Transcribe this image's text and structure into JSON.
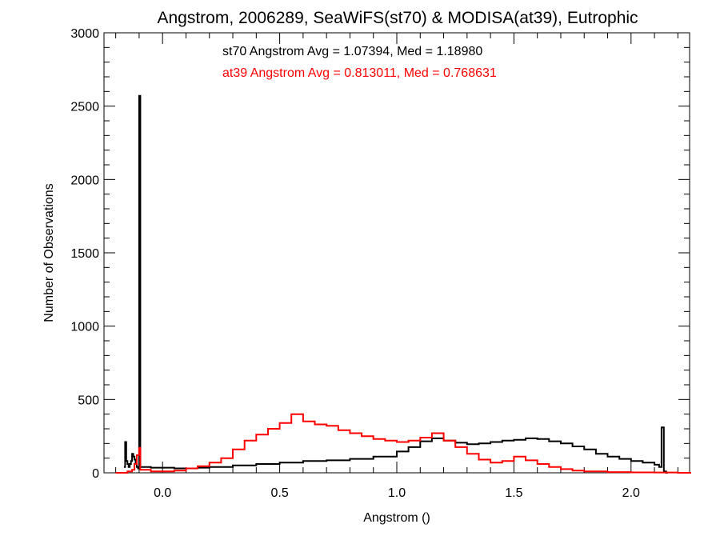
{
  "chart_data": {
    "type": "line",
    "title": "Angstrom, 2006289, SeaWiFS(st70) & MODISA(at39), Eutrophic",
    "xlabel": "Angstrom ()",
    "ylabel": "Number of Observations",
    "xlim": [
      -0.25,
      2.25
    ],
    "ylim": [
      0,
      3000
    ],
    "x_ticks": [
      0.0,
      0.5,
      1.0,
      1.5,
      2.0
    ],
    "x_tick_labels": [
      "0.0",
      "0.5",
      "1.0",
      "1.5",
      "2.0"
    ],
    "y_ticks": [
      0,
      500,
      1000,
      1500,
      2000,
      2500,
      3000
    ],
    "y_tick_labels": [
      "0",
      "500",
      "1000",
      "1500",
      "2000",
      "2500",
      "3000"
    ],
    "annotations": [
      {
        "text": "st70 Angstrom Avg = 1.07394, Med = 1.18980",
        "color": "#000000"
      },
      {
        "text": "at39 Angstrom Avg = 0.813011, Med = 0.768631",
        "color": "#ff0000"
      }
    ],
    "series": [
      {
        "color": "#000000",
        "points": [
          [
            -0.165,
            40
          ],
          [
            -0.16,
            210
          ],
          [
            -0.155,
            80
          ],
          [
            -0.15,
            60
          ],
          [
            -0.145,
            40
          ],
          [
            -0.14,
            60
          ],
          [
            -0.135,
            80
          ],
          [
            -0.13,
            130
          ],
          [
            -0.125,
            110
          ],
          [
            -0.12,
            90
          ],
          [
            -0.115,
            60
          ],
          [
            -0.11,
            40
          ],
          [
            -0.105,
            30
          ],
          [
            -0.1,
            2570
          ],
          [
            -0.095,
            40
          ],
          [
            -0.05,
            35
          ],
          [
            0.0,
            35
          ],
          [
            0.05,
            30
          ],
          [
            0.1,
            30
          ],
          [
            0.15,
            35
          ],
          [
            0.2,
            40
          ],
          [
            0.3,
            50
          ],
          [
            0.4,
            60
          ],
          [
            0.5,
            70
          ],
          [
            0.6,
            80
          ],
          [
            0.7,
            85
          ],
          [
            0.8,
            95
          ],
          [
            0.9,
            110
          ],
          [
            1.0,
            145
          ],
          [
            1.05,
            175
          ],
          [
            1.1,
            215
          ],
          [
            1.15,
            235
          ],
          [
            1.2,
            220
          ],
          [
            1.25,
            205
          ],
          [
            1.3,
            195
          ],
          [
            1.35,
            200
          ],
          [
            1.4,
            210
          ],
          [
            1.45,
            220
          ],
          [
            1.5,
            225
          ],
          [
            1.55,
            235
          ],
          [
            1.6,
            230
          ],
          [
            1.65,
            215
          ],
          [
            1.7,
            200
          ],
          [
            1.75,
            180
          ],
          [
            1.8,
            160
          ],
          [
            1.85,
            130
          ],
          [
            1.9,
            110
          ],
          [
            1.95,
            95
          ],
          [
            2.0,
            80
          ],
          [
            2.05,
            70
          ],
          [
            2.1,
            55
          ],
          [
            2.12,
            40
          ],
          [
            2.13,
            310
          ],
          [
            2.14,
            10
          ],
          [
            2.15,
            0
          ]
        ]
      },
      {
        "color": "#ff0000",
        "points": [
          [
            -0.2,
            0
          ],
          [
            -0.15,
            10
          ],
          [
            -0.13,
            20
          ],
          [
            -0.12,
            60
          ],
          [
            -0.11,
            120
          ],
          [
            -0.1,
            170
          ],
          [
            -0.095,
            20
          ],
          [
            -0.05,
            10
          ],
          [
            0.0,
            10
          ],
          [
            0.05,
            15
          ],
          [
            0.1,
            30
          ],
          [
            0.15,
            45
          ],
          [
            0.2,
            70
          ],
          [
            0.25,
            100
          ],
          [
            0.3,
            160
          ],
          [
            0.35,
            220
          ],
          [
            0.4,
            260
          ],
          [
            0.45,
            300
          ],
          [
            0.5,
            340
          ],
          [
            0.55,
            400
          ],
          [
            0.6,
            350
          ],
          [
            0.65,
            330
          ],
          [
            0.7,
            320
          ],
          [
            0.75,
            290
          ],
          [
            0.8,
            270
          ],
          [
            0.85,
            250
          ],
          [
            0.9,
            230
          ],
          [
            0.95,
            220
          ],
          [
            1.0,
            210
          ],
          [
            1.05,
            220
          ],
          [
            1.1,
            240
          ],
          [
            1.15,
            270
          ],
          [
            1.2,
            220
          ],
          [
            1.25,
            175
          ],
          [
            1.3,
            130
          ],
          [
            1.35,
            90
          ],
          [
            1.4,
            70
          ],
          [
            1.45,
            80
          ],
          [
            1.5,
            110
          ],
          [
            1.55,
            85
          ],
          [
            1.6,
            60
          ],
          [
            1.65,
            40
          ],
          [
            1.7,
            25
          ],
          [
            1.75,
            15
          ],
          [
            1.8,
            10
          ],
          [
            1.9,
            5
          ],
          [
            2.0,
            3
          ],
          [
            2.1,
            2
          ],
          [
            2.2,
            0
          ],
          [
            2.25,
            0
          ]
        ]
      }
    ]
  }
}
